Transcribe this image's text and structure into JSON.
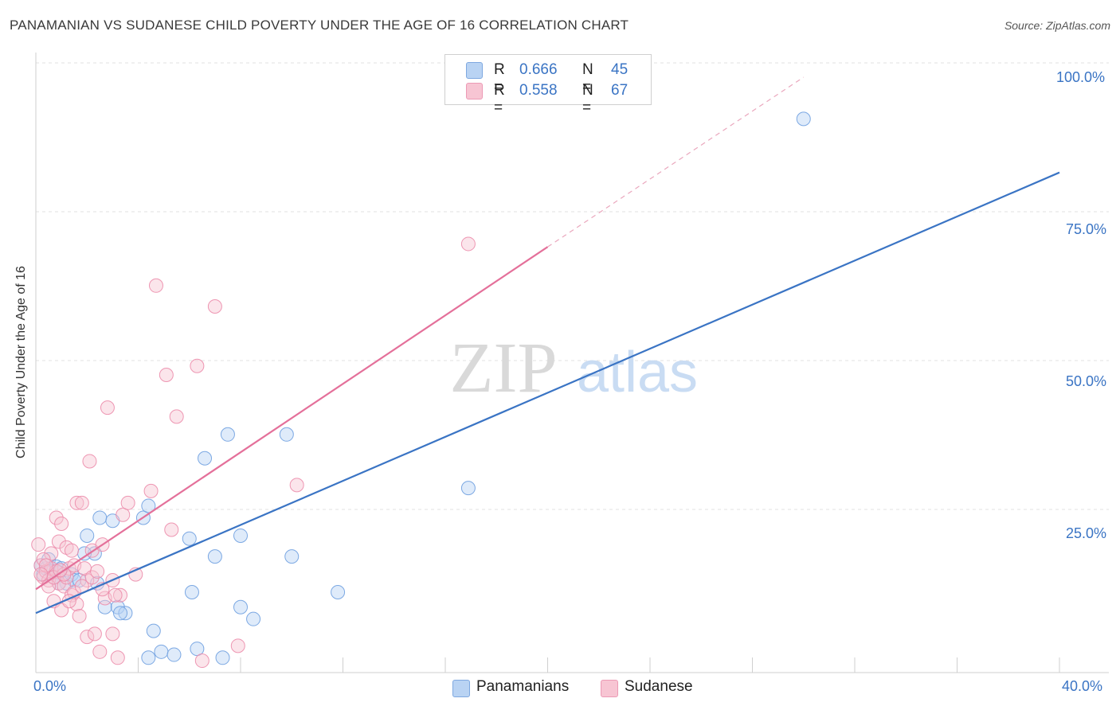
{
  "title": "PANAMANIAN VS SUDANESE CHILD POVERTY UNDER THE AGE OF 16 CORRELATION CHART",
  "source": "Source: ZipAtlas.com",
  "watermark": {
    "zip": "ZIP",
    "atlas": "atlas"
  },
  "legend": {
    "rows": [
      {
        "r_label": "R = ",
        "r_value": "0.666",
        "n_label": "N = ",
        "n_value": "45",
        "color": "#a9c8f0"
      },
      {
        "r_label": "R = ",
        "r_value": "0.558",
        "n_label": "N = ",
        "n_value": "67",
        "color": "#f6b8cb"
      }
    ]
  },
  "bottom_legend": [
    {
      "label": "Panamanians",
      "color": "#b9d3f3"
    },
    {
      "label": "Sudanese",
      "color": "#f7c5d3"
    }
  ],
  "chart_data": {
    "type": "scatter",
    "title": "PANAMANIAN VS SUDANESE CHILD POVERTY UNDER THE AGE OF 16 CORRELATION CHART",
    "xlabel": "",
    "ylabel": "Child Poverty Under the Age of 16",
    "xlim": [
      0,
      40
    ],
    "ylim": [
      0,
      102
    ],
    "x_tick_labels": [
      "0.0%",
      "40.0%"
    ],
    "y_tick_labels": [
      {
        "value": 100,
        "label": "100.0%"
      },
      {
        "value": 75,
        "label": "75.0%"
      },
      {
        "value": 50,
        "label": "50.0%"
      },
      {
        "value": 25,
        "label": "25.0%"
      }
    ],
    "grid": true,
    "series": [
      {
        "name": "Panamanians",
        "color": "#6fa0e0",
        "fill": "#b9d3f3",
        "trend_line_color": "#3a74c4",
        "trend": {
          "x0": 0,
          "y0": 10.0,
          "x1": 40,
          "y1": 84.0
        },
        "points": [
          [
            0.2,
            18.0
          ],
          [
            0.3,
            16.5
          ],
          [
            0.4,
            17.5
          ],
          [
            0.5,
            19.0
          ],
          [
            0.6,
            17.0
          ],
          [
            0.7,
            16.0
          ],
          [
            0.8,
            17.8
          ],
          [
            0.9,
            16.8
          ],
          [
            1.0,
            17.5
          ],
          [
            1.2,
            15.0
          ],
          [
            1.4,
            16.5
          ],
          [
            1.5,
            15.5
          ],
          [
            2.0,
            23.0
          ],
          [
            2.3,
            20.0
          ],
          [
            2.4,
            15.0
          ],
          [
            2.7,
            11.0
          ],
          [
            2.5,
            26.0
          ],
          [
            3.2,
            11.0
          ],
          [
            3.0,
            25.5
          ],
          [
            3.5,
            10.0
          ],
          [
            3.3,
            10.0
          ],
          [
            4.2,
            26.0
          ],
          [
            4.4,
            28.0
          ],
          [
            4.4,
            2.5
          ],
          [
            4.6,
            7.0
          ],
          [
            4.9,
            3.5
          ],
          [
            5.4,
            3.0
          ],
          [
            6.0,
            22.5
          ],
          [
            6.1,
            13.5
          ],
          [
            6.3,
            4.0
          ],
          [
            6.6,
            36.0
          ],
          [
            7.0,
            19.5
          ],
          [
            7.3,
            2.5
          ],
          [
            7.5,
            40.0
          ],
          [
            8.0,
            23.0
          ],
          [
            8.0,
            11.0
          ],
          [
            8.5,
            9.0
          ],
          [
            9.8,
            40.0
          ],
          [
            10.0,
            19.5
          ],
          [
            11.8,
            13.5
          ],
          [
            16.9,
            31.0
          ],
          [
            30.0,
            93.0
          ],
          [
            1.9,
            20.0
          ],
          [
            1.7,
            15.5
          ],
          [
            0.9,
            15.0
          ]
        ]
      },
      {
        "name": "Sudanese",
        "color": "#ec8cab",
        "fill": "#f7c5d3",
        "trend_line_color": "#e4709a",
        "trend": {
          "x0": 0,
          "y0": 14.0,
          "x1": 20,
          "y1": 71.5,
          "dash_x1": 30,
          "dash_y1": 100.0
        },
        "points": [
          [
            0.1,
            21.5
          ],
          [
            0.2,
            18.0
          ],
          [
            0.3,
            16.0
          ],
          [
            0.4,
            17.0
          ],
          [
            0.5,
            15.5
          ],
          [
            0.6,
            17.5
          ],
          [
            0.7,
            12.0
          ],
          [
            0.8,
            17.0
          ],
          [
            0.9,
            15.0
          ],
          [
            1.0,
            10.5
          ],
          [
            1.1,
            14.5
          ],
          [
            1.2,
            16.0
          ],
          [
            1.3,
            17.5
          ],
          [
            1.4,
            13.0
          ],
          [
            1.5,
            18.0
          ],
          [
            1.6,
            11.5
          ],
          [
            1.7,
            9.5
          ],
          [
            1.6,
            28.5
          ],
          [
            1.8,
            28.5
          ],
          [
            2.0,
            15.5
          ],
          [
            2.0,
            6.0
          ],
          [
            2.1,
            35.5
          ],
          [
            2.2,
            20.5
          ],
          [
            2.3,
            6.5
          ],
          [
            2.5,
            3.5
          ],
          [
            2.6,
            21.5
          ],
          [
            2.7,
            12.5
          ],
          [
            2.8,
            44.5
          ],
          [
            3.0,
            15.5
          ],
          [
            3.0,
            6.5
          ],
          [
            3.2,
            2.5
          ],
          [
            3.3,
            13.0
          ],
          [
            3.4,
            26.5
          ],
          [
            3.6,
            28.5
          ],
          [
            3.9,
            16.5
          ],
          [
            4.5,
            30.5
          ],
          [
            4.7,
            65.0
          ],
          [
            5.1,
            50.0
          ],
          [
            5.3,
            24.0
          ],
          [
            5.5,
            43.0
          ],
          [
            6.3,
            51.5
          ],
          [
            6.5,
            2.0
          ],
          [
            7.0,
            61.5
          ],
          [
            7.9,
            4.5
          ],
          [
            10.2,
            31.5
          ],
          [
            16.9,
            72.0
          ],
          [
            0.6,
            20.0
          ],
          [
            0.8,
            26.0
          ],
          [
            0.9,
            22.0
          ],
          [
            1.0,
            25.0
          ],
          [
            1.2,
            21.0
          ],
          [
            1.4,
            20.5
          ],
          [
            0.3,
            19.0
          ],
          [
            0.5,
            14.5
          ],
          [
            0.7,
            16.0
          ],
          [
            1.5,
            13.5
          ],
          [
            1.9,
            17.5
          ],
          [
            2.2,
            16.0
          ],
          [
            2.4,
            17.0
          ],
          [
            1.8,
            14.5
          ],
          [
            1.1,
            16.5
          ],
          [
            0.4,
            18.0
          ],
          [
            0.2,
            16.5
          ],
          [
            2.6,
            14.0
          ],
          [
            3.1,
            13.0
          ],
          [
            1.3,
            12.0
          ],
          [
            0.95,
            17.2
          ]
        ]
      }
    ]
  }
}
